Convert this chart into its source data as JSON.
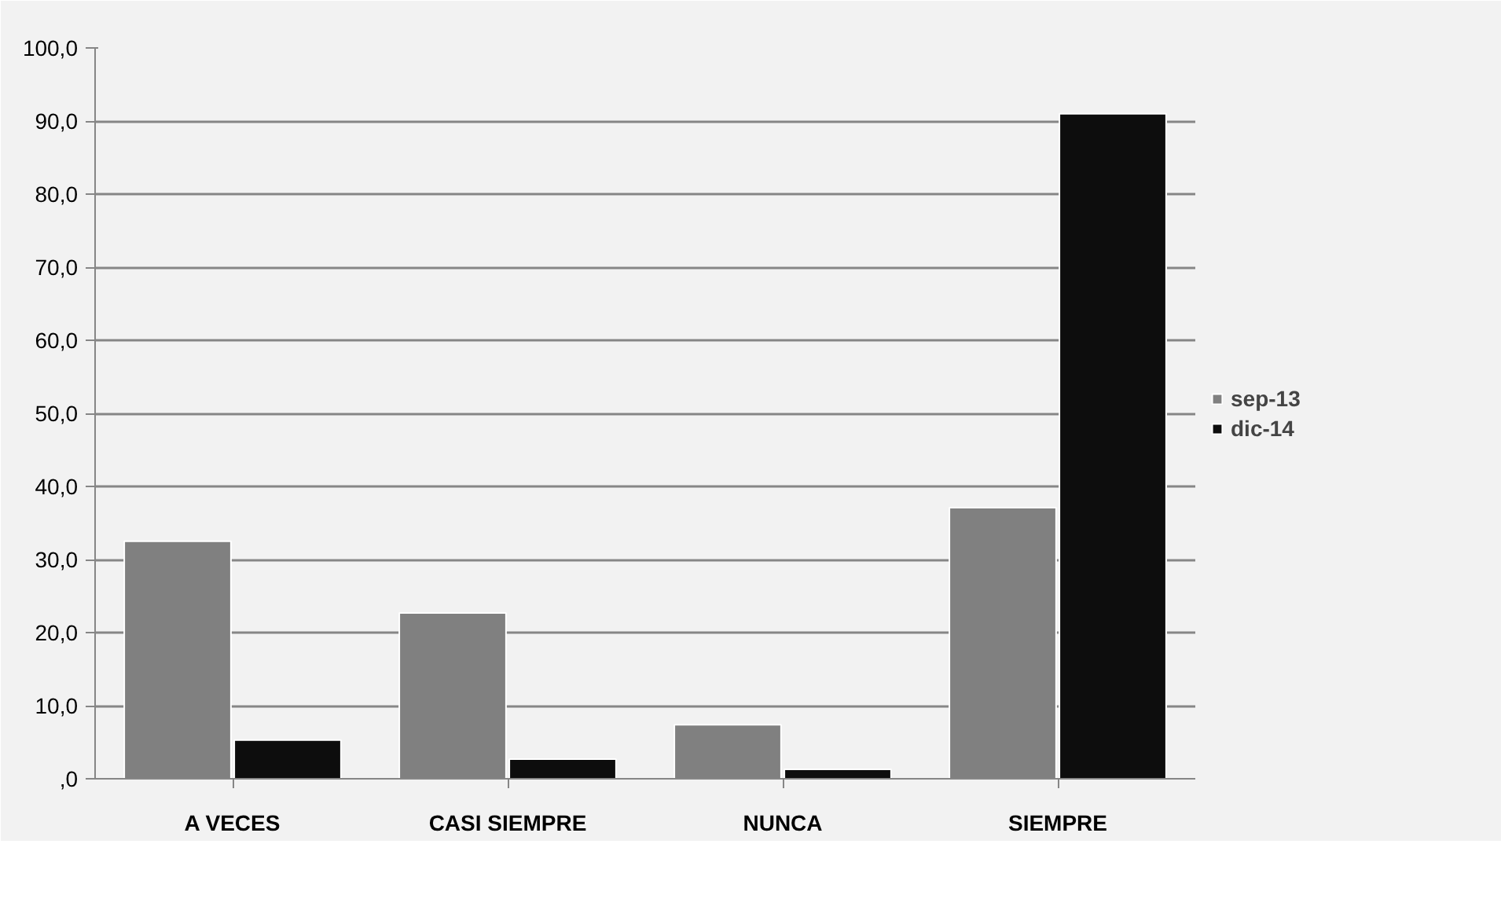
{
  "chart_data": {
    "type": "bar",
    "categories": [
      "A VECES",
      "CASI SIEMPRE",
      "NUNCA",
      "SIEMPRE"
    ],
    "series": [
      {
        "name": "sep-13",
        "color": "#808080",
        "values": [
          32.5,
          22.7,
          7.4,
          37.1
        ]
      },
      {
        "name": "dic-14",
        "color": "#0d0d0d",
        "values": [
          5.3,
          2.7,
          1.3,
          91.0
        ]
      }
    ],
    "ylim": [
      0,
      100
    ],
    "yticks": [
      {
        "value": 0,
        "label": ",0"
      },
      {
        "value": 10,
        "label": "10,0"
      },
      {
        "value": 20,
        "label": "20,0"
      },
      {
        "value": 30,
        "label": "30,0"
      },
      {
        "value": 40,
        "label": "40,0"
      },
      {
        "value": 50,
        "label": "50,0"
      },
      {
        "value": 60,
        "label": "60,0"
      },
      {
        "value": 70,
        "label": "70,0"
      },
      {
        "value": 80,
        "label": "80,0"
      },
      {
        "value": 90,
        "label": "90,0"
      },
      {
        "value": 100,
        "label": "100,0"
      }
    ],
    "grid": "y",
    "legend": "right"
  }
}
